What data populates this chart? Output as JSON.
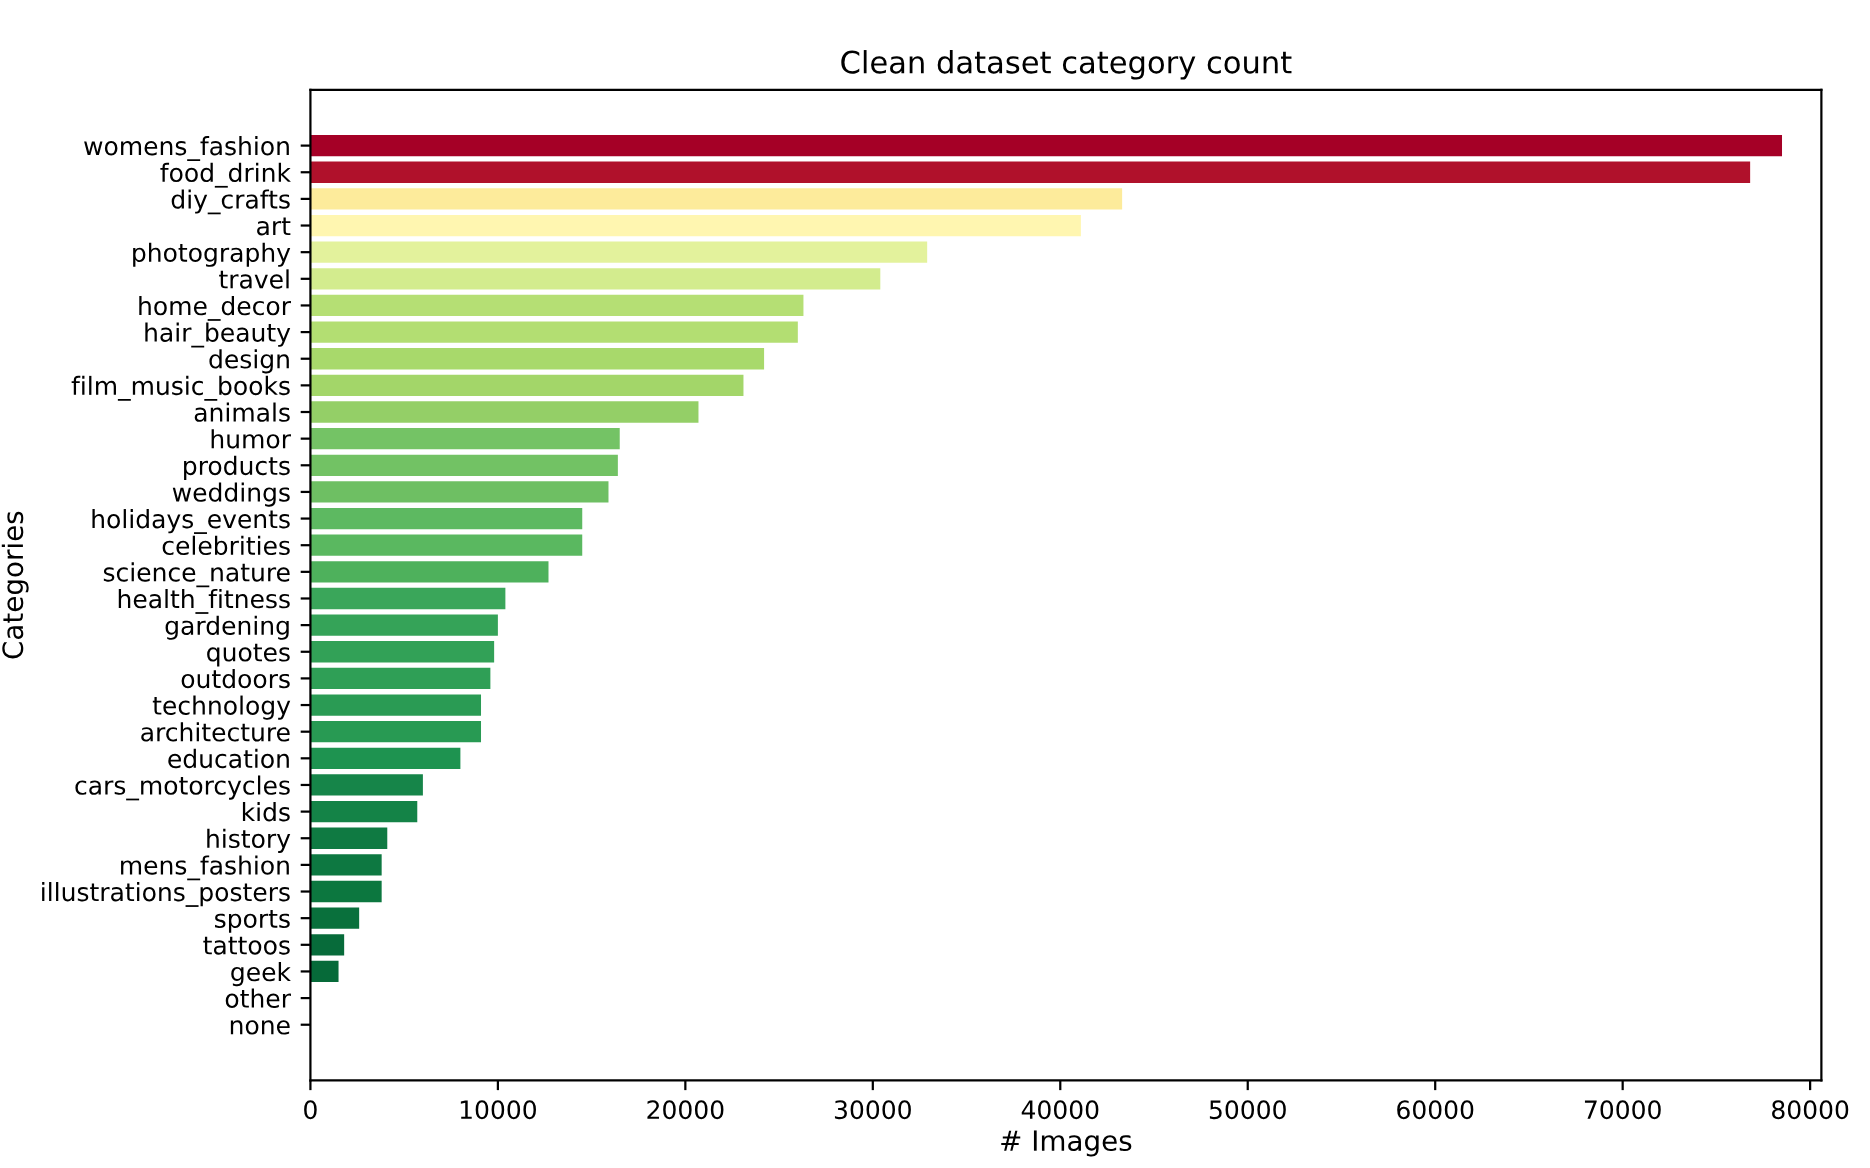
{
  "chart_data": {
    "type": "bar",
    "orientation": "horizontal",
    "title": "Clean dataset category count",
    "xlabel": "# Images",
    "ylabel": "Categories",
    "categories": [
      "womens_fashion",
      "food_drink",
      "diy_crafts",
      "art",
      "photography",
      "travel",
      "home_decor",
      "hair_beauty",
      "design",
      "film_music_books",
      "animals",
      "humor",
      "products",
      "weddings",
      "holidays_events",
      "celebrities",
      "science_nature",
      "health_fitness",
      "gardening",
      "quotes",
      "outdoors",
      "technology",
      "architecture",
      "education",
      "cars_motorcycles",
      "kids",
      "history",
      "mens_fashion",
      "illustrations_posters",
      "sports",
      "tattoos",
      "geek",
      "other",
      "none"
    ],
    "values": [
      78500,
      76800,
      43300,
      41100,
      32900,
      30400,
      26300,
      26000,
      24200,
      23100,
      20700,
      16500,
      16400,
      15900,
      14500,
      14500,
      12700,
      10400,
      10000,
      9800,
      9600,
      9100,
      9100,
      8000,
      6000,
      5700,
      4100,
      3800,
      3800,
      2600,
      1800,
      1500,
      0,
      0
    ],
    "colors": [
      "#a50026",
      "#b0112b",
      "#fdeb9b",
      "#fff6b0",
      "#e3f29c",
      "#d3ec8e",
      "#b5df74",
      "#b3de72",
      "#a8d96b",
      "#a3d669",
      "#94cf67",
      "#74c365",
      "#72c264",
      "#6ebf63",
      "#5db961",
      "#5ab860",
      "#4eb15c",
      "#3aa65a",
      "#35a358",
      "#32a157",
      "#2f9f56",
      "#2a9b54",
      "#289a53",
      "#1e9350",
      "#168549",
      "#148347",
      "#0f7a42",
      "#0d7841",
      "#0c773f",
      "#09703c",
      "#076b3a",
      "#066a39",
      "#05673a",
      "#04643a"
    ],
    "xlim": [
      0,
      80600
    ],
    "xticks": [
      0,
      10000,
      20000,
      30000,
      40000,
      50000,
      60000,
      70000,
      80000
    ],
    "grid": false,
    "legend": false
  }
}
